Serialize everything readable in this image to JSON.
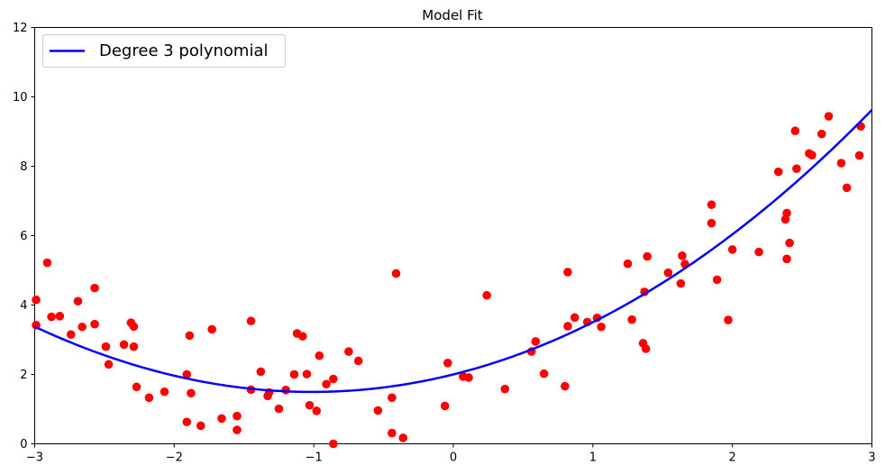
{
  "chart_data": {
    "type": "scatter",
    "title": "Model Fit",
    "xlabel": "",
    "ylabel": "",
    "xlim": [
      -3,
      3
    ],
    "ylim": [
      0,
      12
    ],
    "x_ticks": [
      -3,
      -2,
      -1,
      0,
      1,
      2,
      3
    ],
    "y_ticks": [
      0,
      2,
      4,
      6,
      8,
      10,
      12
    ],
    "x_tick_labels": [
      "−3",
      "−2",
      "−1",
      "0",
      "1",
      "2",
      "3"
    ],
    "y_tick_labels": [
      "0",
      "2",
      "4",
      "6",
      "8",
      "10",
      "12"
    ],
    "grid": false,
    "legend": {
      "position": "top-left",
      "entries": [
        "Degree 3 polynomial"
      ]
    },
    "series": [
      {
        "name": "Degree 3 polynomial",
        "kind": "line",
        "color": "#0000ff",
        "coefficients": {
          "a3": 0.0046,
          "a2": 0.5,
          "a1": 1.0,
          "a0": 2.0
        },
        "x_range": [
          -3,
          3
        ]
      },
      {
        "kind": "scatter",
        "color": "#ff0000",
        "points": [
          [
            -2.99,
            4.15
          ],
          [
            -2.99,
            3.42
          ],
          [
            -2.91,
            5.22
          ],
          [
            -2.88,
            3.66
          ],
          [
            -2.82,
            3.68
          ],
          [
            -2.74,
            3.15
          ],
          [
            -2.69,
            4.11
          ],
          [
            -2.66,
            3.37
          ],
          [
            -2.57,
            4.49
          ],
          [
            -2.57,
            3.45
          ],
          [
            -2.49,
            2.8
          ],
          [
            -2.47,
            2.29
          ],
          [
            -2.36,
            2.86
          ],
          [
            -2.31,
            3.49
          ],
          [
            -2.29,
            3.38
          ],
          [
            -2.29,
            2.8
          ],
          [
            -2.27,
            1.64
          ],
          [
            -2.18,
            1.33
          ],
          [
            -2.07,
            1.5
          ],
          [
            -1.91,
            2.0
          ],
          [
            -1.89,
            3.12
          ],
          [
            -1.88,
            1.46
          ],
          [
            -1.91,
            0.63
          ],
          [
            -1.81,
            0.52
          ],
          [
            -1.73,
            3.3
          ],
          [
            -1.66,
            0.73
          ],
          [
            -1.55,
            0.8
          ],
          [
            -1.55,
            0.4
          ],
          [
            -1.45,
            3.54
          ],
          [
            -1.45,
            1.56
          ],
          [
            -1.38,
            2.08
          ],
          [
            -1.33,
            1.38
          ],
          [
            -1.32,
            1.48
          ],
          [
            -1.25,
            1.01
          ],
          [
            -1.2,
            1.55
          ],
          [
            -1.14,
            2.0
          ],
          [
            -1.12,
            3.18
          ],
          [
            -1.08,
            3.1
          ],
          [
            -1.05,
            2.01
          ],
          [
            -1.03,
            1.11
          ],
          [
            -0.98,
            0.95
          ],
          [
            -0.96,
            2.54
          ],
          [
            -0.91,
            1.72
          ],
          [
            -0.86,
            1.87
          ],
          [
            -0.86,
            0.0
          ],
          [
            -0.75,
            2.66
          ],
          [
            -0.68,
            2.39
          ],
          [
            -0.54,
            0.96
          ],
          [
            -0.44,
            1.33
          ],
          [
            -0.44,
            0.31
          ],
          [
            -0.41,
            4.91
          ],
          [
            -0.36,
            0.17
          ],
          [
            -0.06,
            1.09
          ],
          [
            -0.04,
            2.33
          ],
          [
            0.07,
            1.94
          ],
          [
            0.11,
            1.91
          ],
          [
            0.24,
            4.28
          ],
          [
            0.37,
            1.58
          ],
          [
            0.56,
            2.66
          ],
          [
            0.59,
            2.95
          ],
          [
            0.65,
            2.02
          ],
          [
            0.8,
            1.66
          ],
          [
            0.82,
            3.39
          ],
          [
            0.82,
            4.95
          ],
          [
            0.87,
            3.64
          ],
          [
            0.96,
            3.51
          ],
          [
            1.03,
            3.63
          ],
          [
            1.06,
            3.37
          ],
          [
            1.25,
            5.19
          ],
          [
            1.28,
            3.58
          ],
          [
            1.36,
            2.9
          ],
          [
            1.37,
            4.38
          ],
          [
            1.38,
            2.74
          ],
          [
            1.39,
            5.4
          ],
          [
            1.54,
            4.93
          ],
          [
            1.63,
            4.62
          ],
          [
            1.64,
            5.42
          ],
          [
            1.66,
            5.18
          ],
          [
            1.85,
            6.89
          ],
          [
            1.85,
            6.36
          ],
          [
            1.89,
            4.73
          ],
          [
            1.97,
            3.57
          ],
          [
            2.0,
            5.6
          ],
          [
            2.19,
            5.53
          ],
          [
            2.33,
            7.84
          ],
          [
            2.38,
            6.47
          ],
          [
            2.39,
            6.65
          ],
          [
            2.39,
            5.33
          ],
          [
            2.41,
            5.79
          ],
          [
            2.45,
            9.02
          ],
          [
            2.46,
            7.93
          ],
          [
            2.55,
            8.37
          ],
          [
            2.57,
            8.32
          ],
          [
            2.64,
            8.93
          ],
          [
            2.69,
            9.44
          ],
          [
            2.78,
            8.09
          ],
          [
            2.82,
            7.38
          ],
          [
            2.91,
            8.31
          ],
          [
            2.92,
            9.15
          ]
        ]
      }
    ]
  }
}
